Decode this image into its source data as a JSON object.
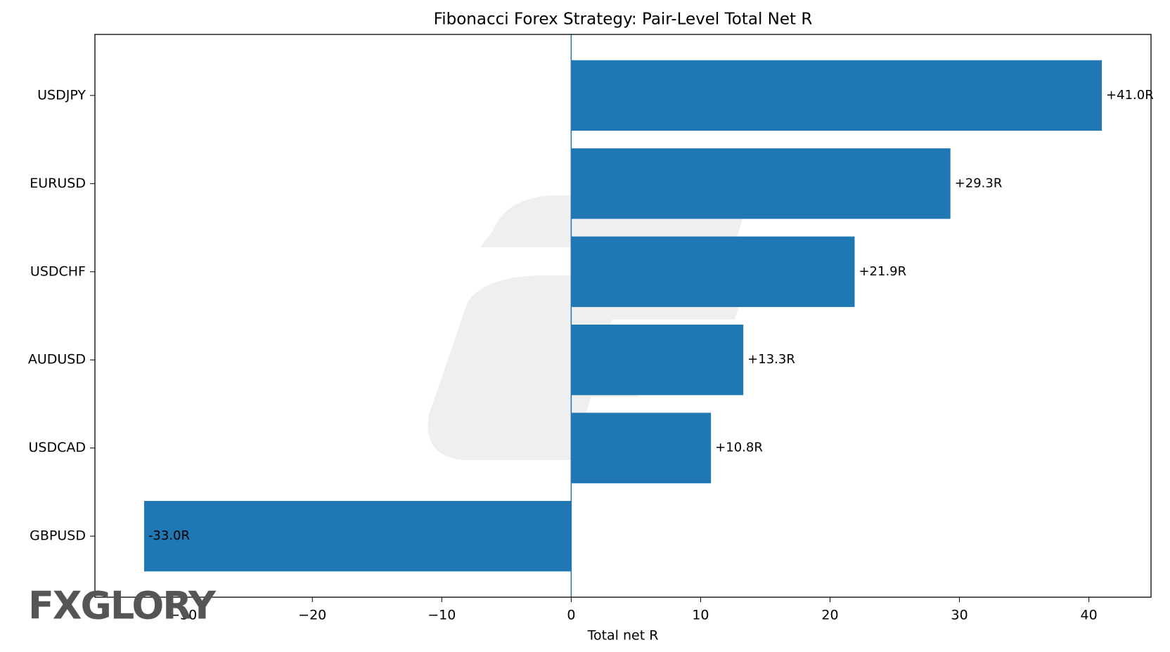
{
  "chart_data": {
    "type": "barh",
    "title": "Fibonacci Forex Strategy: Pair-Level Total Net R",
    "x_label": "Total net R",
    "categories": [
      "USDJPY",
      "EURUSD",
      "USDCHF",
      "AUDUSD",
      "USDCAD",
      "GBPUSD"
    ],
    "values": [
      41.0,
      29.3,
      21.9,
      13.3,
      10.8,
      -33.0
    ],
    "value_labels": [
      "+41.0R",
      "+29.3R",
      "+21.9R",
      "+13.3R",
      "+10.8R",
      "-33.0R"
    ],
    "color": "#1f77b4",
    "xlim": [
      -36.8,
      44.8
    ],
    "xticks": [
      {
        "value": -30,
        "label": "−30"
      },
      {
        "value": -20,
        "label": "−20"
      },
      {
        "value": -10,
        "label": "−10"
      },
      0,
      10,
      20,
      30,
      40
    ],
    "grid": false,
    "watermark": "FXGLORY"
  }
}
